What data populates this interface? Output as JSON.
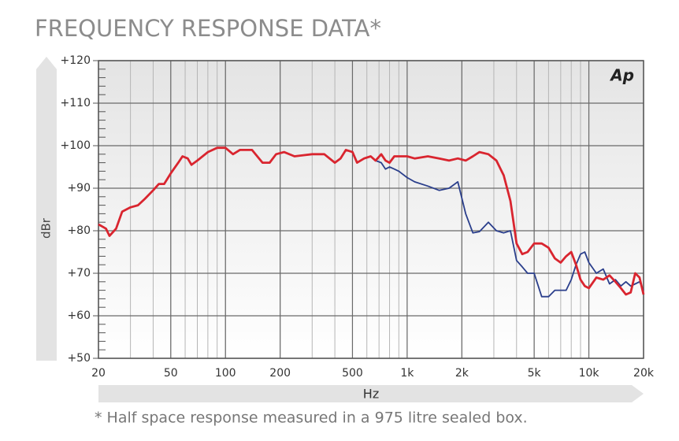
{
  "chart_data": {
    "type": "line",
    "title": "FREQUENCY RESPONSE DATA*",
    "footnote": "* Half space response measured in a 975 litre sealed box.",
    "annotation": "Ap",
    "xlabel": "Hz",
    "ylabel": "dBr",
    "xscale": "log",
    "grid": true,
    "xlim": [
      20,
      20000
    ],
    "ylim": [
      50,
      120
    ],
    "xticks": [
      20,
      50,
      100,
      200,
      500,
      {
        "value": 1000,
        "label": "1k"
      },
      {
        "value": 2000,
        "label": "2k"
      },
      {
        "value": 5000,
        "label": "5k"
      },
      {
        "value": 10000,
        "label": "10k"
      },
      {
        "value": 20000,
        "label": "20k"
      }
    ],
    "yticks": [
      {
        "value": 50,
        "label": "+50"
      },
      {
        "value": 60,
        "label": "+60"
      },
      {
        "value": 70,
        "label": "+70"
      },
      {
        "value": 80,
        "label": "+80"
      },
      {
        "value": 90,
        "label": "+90"
      },
      {
        "value": 100,
        "label": "+100"
      },
      {
        "value": 110,
        "label": "+110"
      },
      {
        "value": 120,
        "label": "+120"
      }
    ],
    "x": [
      20,
      22,
      23,
      25,
      27,
      30,
      33,
      36,
      40,
      43,
      46,
      50,
      55,
      58,
      62,
      65,
      70,
      80,
      90,
      100,
      110,
      120,
      140,
      160,
      175,
      190,
      210,
      240,
      300,
      350,
      400,
      430,
      460,
      500,
      530,
      580,
      630,
      670,
      720,
      760,
      800,
      850,
      900,
      1000,
      1100,
      1300,
      1500,
      1700,
      1900,
      2100,
      2300,
      2500,
      2800,
      3100,
      3400,
      3700,
      4000,
      4300,
      4600,
      5000,
      5500,
      6000,
      6500,
      7000,
      7500,
      8000,
      8500,
      9000,
      9500,
      10000,
      11000,
      12000,
      13000,
      14000,
      15000,
      16000,
      17000,
      18000,
      19000,
      20000
    ],
    "series": [
      {
        "color": "#2b3f8c",
        "values": [
          81.5,
          80.5,
          78.8,
          80.5,
          84.5,
          85.5,
          86,
          87.5,
          89.5,
          91,
          91,
          93.5,
          96,
          97.5,
          97,
          95.5,
          96.5,
          98.5,
          99.5,
          99.5,
          98,
          99,
          99,
          96,
          96,
          98,
          98.5,
          97.5,
          98,
          98,
          96,
          97,
          99,
          98.5,
          96,
          97,
          97.5,
          96.5,
          96,
          94.5,
          95,
          94.5,
          94,
          92.5,
          91.5,
          90.5,
          89.5,
          90,
          91.5,
          84,
          79.5,
          79.8,
          82,
          80,
          79.5,
          80,
          73,
          71.5,
          70,
          70,
          64.5,
          64.5,
          66,
          66,
          66,
          68.5,
          72,
          74.5,
          75,
          72.5,
          70,
          71,
          67.5,
          68.5,
          67,
          68,
          67,
          67.5,
          68,
          66
        ]
      },
      {
        "color": "#d9252f",
        "values": [
          81.5,
          80.5,
          78.8,
          80.5,
          84.5,
          85.5,
          86,
          87.5,
          89.5,
          91,
          91,
          93.5,
          96,
          97.5,
          97,
          95.5,
          96.5,
          98.5,
          99.5,
          99.5,
          98,
          99,
          99,
          96,
          96,
          98,
          98.5,
          97.5,
          98,
          98,
          96,
          97,
          99,
          98.5,
          96,
          97,
          97.5,
          96.5,
          98,
          96.5,
          96,
          97.5,
          97.5,
          97.5,
          97,
          97.5,
          97,
          96.5,
          97,
          96.5,
          97.5,
          98.5,
          98,
          96.5,
          93,
          87,
          77,
          74.5,
          75,
          77,
          77,
          76,
          73.5,
          72.5,
          74,
          75,
          72,
          68.5,
          67,
          66.5,
          69,
          68.5,
          69.5,
          68,
          66.5,
          65,
          65.5,
          70,
          69,
          65
        ]
      }
    ]
  }
}
